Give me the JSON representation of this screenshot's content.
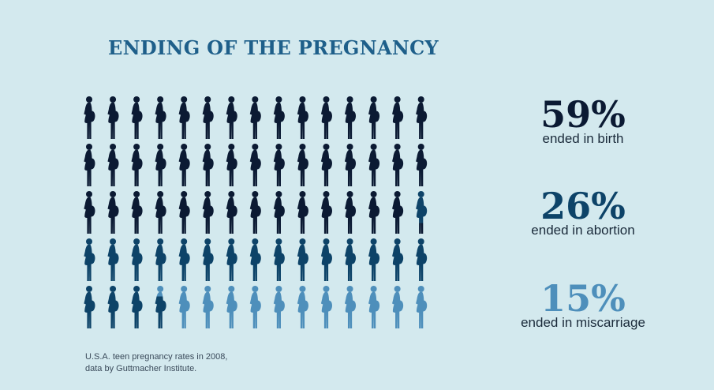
{
  "title": "ENDING OF THE PREGNANCY",
  "colors": {
    "birth": "#0b1a33",
    "abortion": "#0d4368",
    "miscarriage": "#4e8fbb",
    "background": "#d3e9ee"
  },
  "chart_data": {
    "type": "pictograph",
    "title": "ENDING OF THE PREGNANCY",
    "icon": "pregnant-woman-icon",
    "total_icons": 75,
    "rows": 5,
    "columns": 15,
    "series": [
      {
        "percent": "59%",
        "label": "ended in birth",
        "value": 59,
        "color": "#0b1a33"
      },
      {
        "percent": "26%",
        "label": "ended in abortion",
        "value": 26,
        "color": "#0d4368"
      },
      {
        "percent": "15%",
        "label": "ended in miscarriage",
        "value": 15,
        "color": "#4e8fbb"
      }
    ]
  },
  "footnote": {
    "line1": "U.S.A. teen pregnancy rates in 2008,",
    "line2": "data by Guttmacher Institute."
  }
}
